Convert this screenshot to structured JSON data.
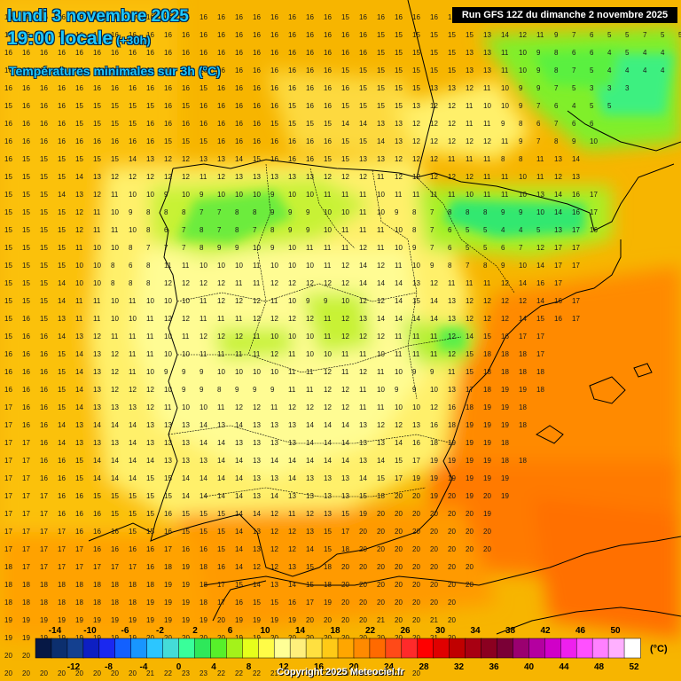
{
  "header": {
    "date_line": "lundi 3 novembre 2025",
    "time_line": "19:00 locale",
    "lead_time": "(+30h)",
    "variable": "Températures minimales sur 3h (°C)"
  },
  "run_label": "Run GFS 12Z du dimanche 2 novembre 2025",
  "copyright": "Copyright 2025 Meteociel.fr",
  "legend": {
    "unit": "(°C)",
    "top_labels": [
      "-14",
      "-10",
      "-6",
      "-2",
      "2",
      "6",
      "10",
      "14",
      "18",
      "22",
      "26",
      "30",
      "34",
      "38",
      "42",
      "46",
      "50"
    ],
    "bottom_labels": [
      "-12",
      "-8",
      "-4",
      "0",
      "4",
      "8",
      "12",
      "16",
      "20",
      "24",
      "28",
      "32",
      "36",
      "40",
      "44",
      "48",
      "52"
    ],
    "colors": [
      "#061845",
      "#0c2f6e",
      "#14408f",
      "#0d1fc2",
      "#1a28f0",
      "#1260ff",
      "#1896ff",
      "#2cc6ff",
      "#44dcd8",
      "#39ff9a",
      "#2ee85a",
      "#57f02a",
      "#a4f21a",
      "#e6ff1a",
      "#fffc47",
      "#ffff96",
      "#ffef7c",
      "#ffe040",
      "#ffca16",
      "#ffa600",
      "#ff8a00",
      "#ff6a00",
      "#ff4a18",
      "#ff2a2a",
      "#ff0000",
      "#e00000",
      "#c00000",
      "#a80012",
      "#8b0020",
      "#7a0036",
      "#9a0070",
      "#b400a0",
      "#d000c8",
      "#ee20ee",
      "#ff50ff",
      "#ff80ff",
      "#ffb0ff",
      "#ffffff"
    ]
  },
  "map": {
    "grid_values": [
      "16 16 16 16 16 16 16 16 16 16 16 16 16 16 16 16 16 16 16 15 16 16 16 16 16 15 16 15 15 15 15 15 15 15 15 16 16 16",
      "16 16 16 16 16 16 16 16 16 16 16 16 16 16 16 16 16 16 16 16 16 15 15 15 15 15 15 13 14 12 11 9 7 6 5 5 7 5 5",
      "16 16 16 16 16 16 16 16 16 16 16 16 16 16 16 16 16 16 16 16 16 15 15 15 15 15 13 13 11 10 9 8 6 6 4 5 4 4",
      "16 16 15 15 16 16 16 16 16 16 16 16 16 16 16 16 16 16 16 15 15 15 15 15 15 15 13 13 11 10 9 8 7 5 4 4 4 4",
      "16 16 16 16 16 16 16 16 16 16 16 15 16 16 16 16 16 16 16 16 15 15 15 15 13 13 12 11 10 9 9 7 5 3 3 3",
      "15 16 16 16 15 15 15 15 15 16 15 16 16 16 16 16 15 16 16 15 15 15 15 13 12 12 11 10 10 9 7 6 4 5 5",
      "16 16 16 16 15 15 15 15 16 16 16 16 16 16 16 15 15 15 15 14 14 13 13 12 12 12 11 11 9 8 6 7 6 6",
      "16 16 16 16 16 16 16 16 16 15 15 15 16 16 16 16 16 16 16 15 15 14 13 12 12 12 12 12 11 9 7 8 9 10",
      "16 15 15 15 15 15 15 14 13 12 12 13 13 14 15 16 16 16 15 15 13 13 12 12 12 11 11 11 8 8 11 13 14",
      "15 15 15 15 14 13 12 12 12 12 12 11 12 13 13 13 13 13 12 12 12 11 12 12 12 12 12 11 11 10 11 12 13",
      "15 15 15 14 13 12 11 10 10 9 10 9 10 10 10 9 10 10 11 11 11 10 11 11 11 11 10 11 11 10 13 14 16 17",
      "15 15 15 15 12 11 10 9 8 8 8 7 7 8 8 9 9 9 10 10 11 10 9 8 7 8 8 8 9 9 10 14 16 17",
      "15 15 15 15 12 11 11 10 8 6 7 8 7 8 7 8 9 9 10 11 11 11 10 8 7 6 5 5 4 4 5 13 17 16",
      "15 15 15 15 11 10 10 8 7 7 7 8 9 9 10 9 10 11 11 11 12 11 10 9 7 6 5 5 6 7 12 17 17",
      "15 15 15 15 10 10 8 6 8 11 11 10 10 10 11 10 10 10 11 12 14 12 11 10 9 8 7 8 9 10 14 17 17",
      "15 15 15 14 10 10 8 8 8 12 12 12 12 11 11 12 12 12 12 12 14 14 14 13 12 11 11 11 12 14 16 17",
      "15 15 15 14 11 11 10 11 10 10 10 11 12 12 12 11 10 9 9 10 12 12 14 15 14 13 12 12 12 12 14 16 17",
      "15 16 15 13 11 11 10 10 11 12 12 11 11 11 12 12 12 12 11 12 13 14 14 14 14 13 12 12 12 14 15 16 17",
      "15 16 16 14 13 12 11 11 11 10 11 12 12 12 11 10 10 10 11 12 12 12 11 11 11 12 14 15 16 17 17",
      "16 16 16 15 14 13 12 11 11 10 10 11 11 11 11 12 11 10 10 11 11 10 11 11 11 12 15 18 18 18 17",
      "16 16 16 15 14 13 12 11 10 9 9 9 10 10 10 10 11 11 12 11 12 11 10 9 9 11 15 18 18 18 18",
      "16 16 16 15 14 13 12 12 12 10 9 9 8 9 9 9 11 11 12 12 11 10 9 9 10 13 17 18 19 19 18",
      "17 16 16 15 14 13 13 13 12 11 10 10 11 12 12 11 12 12 12 12 11 11 10 10 12 16 18 19 19 18",
      "17 16 16 14 13 14 14 14 13 13 13 14 13 14 13 13 13 14 14 14 13 12 12 13 16 18 19 19 19 18",
      "17 17 16 14 13 13 13 14 13 13 13 14 14 13 13 13 13 14 14 14 13 13 14 16 18 19 19 19 18",
      "17 17 16 16 15 14 14 14 14 13 13 13 14 14 13 14 14 14 14 14 13 14 15 17 19 19 19 19 18 18",
      "17 17 16 16 15 14 14 14 15 15 14 14 14 14 13 13 14 13 13 13 14 15 17 19 19 19 19 19 19",
      "17 17 17 16 16 15 15 15 15 15 14 14 14 14 13 14 13 13 13 13 15 18 20 20 19 20 19 20 19",
      "17 17 17 16 16 16 15 15 15 16 15 15 15 14 14 12 11 12 13 15 19 20 20 20 20 20 20 19",
      "17 17 17 17 16 16 16 15 15 16 15 15 15 14 13 12 12 13 15 17 20 20 20 20 20 20 20 20",
      "17 17 17 17 17 16 16 16 16 17 16 16 15 14 13 12 12 14 15 18 20 20 20 20 20 20 20 20",
      "18 17 17 17 17 17 17 17 16 18 19 18 16 14 12 12 13 15 18 20 20 20 20 20 20 20 20",
      "18 18 18 18 18 18 18 18 18 19 19 18 17 15 14 13 14 15 18 20 20 20 20 20 20 20 20",
      "18 18 18 18 18 18 18 18 19 19 19 18 17 16 15 15 16 17 19 20 20 20 20 20 20 20",
      "19 19 19 19 19 19 19 19 19 19 19 19 20 19 19 19 19 20 20 20 20 21 20 20 21 20",
      "19 19 19 19 19 19 19 19 20 20 20 20 20 19 19 20 20 20 20 20 20 20 20 20 21 20",
      "20 20 20 20 20 20 20 21 21 22 22 22 22 21 21 21 21 21 20 20 20 20 20 20 20",
      "20 20 20 20 20 20 20 20 21 22 23 23 22 22 22 21 21 20 20 20 20 20 20 20"
    ]
  }
}
